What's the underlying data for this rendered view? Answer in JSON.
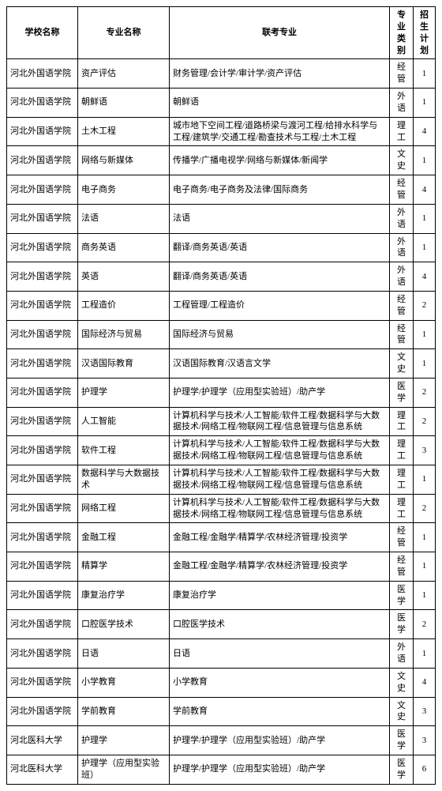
{
  "headers": {
    "school": "学校名称",
    "major": "专业名称",
    "related": "联考专业",
    "category": "专业类别",
    "plan": "招生计划"
  },
  "rows": [
    {
      "school": "河北外国语学院",
      "major": "资产评估",
      "related": "财务管理/会计学/审计学/资产评估",
      "category": "经管",
      "plan": "1"
    },
    {
      "school": "河北外国语学院",
      "major": "朝鲜语",
      "related": "朝鲜语",
      "category": "外语",
      "plan": "1"
    },
    {
      "school": "河北外国语学院",
      "major": "土木工程",
      "related": "城市地下空间工程/道路桥梁与渡河工程/给排水科学与工程/建筑学/交通工程/勘查技术与工程/土木工程",
      "category": "理工",
      "plan": "4"
    },
    {
      "school": "河北外国语学院",
      "major": "网络与新媒体",
      "related": "传播学/广播电视学/网络与新媒体/新闻学",
      "category": "文史",
      "plan": "1"
    },
    {
      "school": "河北外国语学院",
      "major": "电子商务",
      "related": "电子商务/电子商务及法律/国际商务",
      "category": "经管",
      "plan": "4"
    },
    {
      "school": "河北外国语学院",
      "major": "法语",
      "related": "法语",
      "category": "外语",
      "plan": "1"
    },
    {
      "school": "河北外国语学院",
      "major": "商务英语",
      "related": "翻译/商务英语/英语",
      "category": "外语",
      "plan": "1"
    },
    {
      "school": "河北外国语学院",
      "major": "英语",
      "related": "翻译/商务英语/英语",
      "category": "外语",
      "plan": "4"
    },
    {
      "school": "河北外国语学院",
      "major": "工程造价",
      "related": "工程管理/工程造价",
      "category": "经管",
      "plan": "2"
    },
    {
      "school": "河北外国语学院",
      "major": "国际经济与贸易",
      "related": "国际经济与贸易",
      "category": "经管",
      "plan": "1"
    },
    {
      "school": "河北外国语学院",
      "major": "汉语国际教育",
      "related": "汉语国际教育/汉语言文学",
      "category": "文史",
      "plan": "1"
    },
    {
      "school": "河北外国语学院",
      "major": "护理学",
      "related": "护理学/护理学（应用型实验班）/助产学",
      "category": "医学",
      "plan": "2"
    },
    {
      "school": "河北外国语学院",
      "major": "人工智能",
      "related": "计算机科学与技术/人工智能/软件工程/数据科学与大数据技术/网络工程/物联网工程/信息管理与信息系统",
      "category": "理工",
      "plan": "2"
    },
    {
      "school": "河北外国语学院",
      "major": "软件工程",
      "related": "计算机科学与技术/人工智能/软件工程/数据科学与大数据技术/网络工程/物联网工程/信息管理与信息系统",
      "category": "理工",
      "plan": "3"
    },
    {
      "school": "河北外国语学院",
      "major": "数据科学与大数据技术",
      "related": "计算机科学与技术/人工智能/软件工程/数据科学与大数据技术/网络工程/物联网工程/信息管理与信息系统",
      "category": "理工",
      "plan": "1"
    },
    {
      "school": "河北外国语学院",
      "major": "网络工程",
      "related": "计算机科学与技术/人工智能/软件工程/数据科学与大数据技术/网络工程/物联网工程/信息管理与信息系统",
      "category": "理工",
      "plan": "2"
    },
    {
      "school": "河北外国语学院",
      "major": "金融工程",
      "related": "金融工程/金融学/精算学/农林经济管理/投资学",
      "category": "经管",
      "plan": "1"
    },
    {
      "school": "河北外国语学院",
      "major": "精算学",
      "related": "金融工程/金融学/精算学/农林经济管理/投资学",
      "category": "经管",
      "plan": "1"
    },
    {
      "school": "河北外国语学院",
      "major": "康复治疗学",
      "related": "康复治疗学",
      "category": "医学",
      "plan": "1"
    },
    {
      "school": "河北外国语学院",
      "major": "口腔医学技术",
      "related": "口腔医学技术",
      "category": "医学",
      "plan": "2"
    },
    {
      "school": "河北外国语学院",
      "major": "日语",
      "related": "日语",
      "category": "外语",
      "plan": "1"
    },
    {
      "school": "河北外国语学院",
      "major": "小学教育",
      "related": "小学教育",
      "category": "文史",
      "plan": "4"
    },
    {
      "school": "河北外国语学院",
      "major": "学前教育",
      "related": "学前教育",
      "category": "文史",
      "plan": "3"
    },
    {
      "school": "河北医科大学",
      "major": "护理学",
      "related": "护理学/护理学（应用型实验班）/助产学",
      "category": "医学",
      "plan": "3"
    },
    {
      "school": "河北医科大学",
      "major": "护理学（应用型实验班）",
      "related": "护理学/护理学（应用型实验班）/助产学",
      "category": "医学",
      "plan": "6"
    }
  ]
}
